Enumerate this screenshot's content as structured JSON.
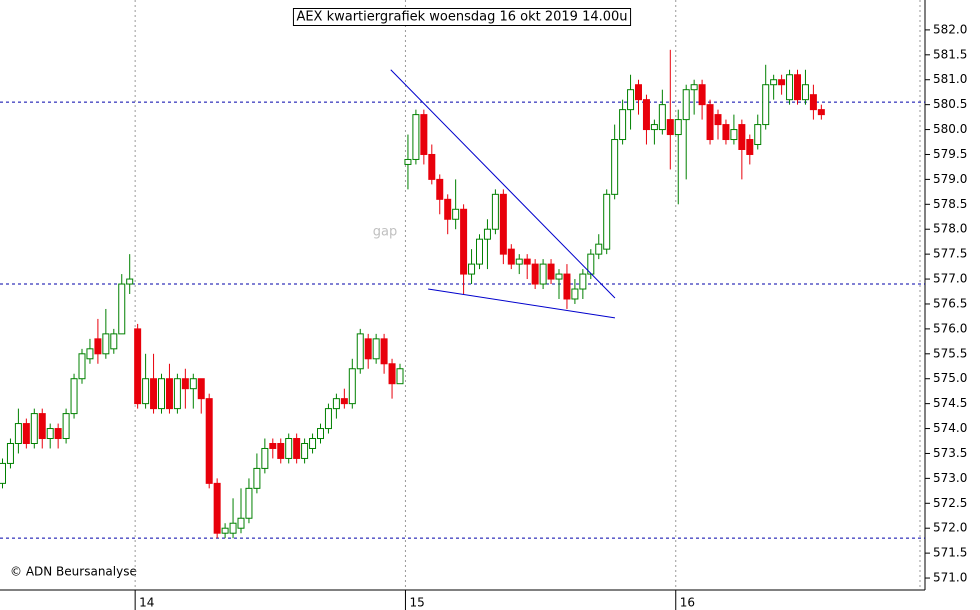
{
  "chart_data": {
    "type": "candlestick",
    "title": "AEX kwartiergrafiek woensdag 16 okt 2019 14.00u",
    "annotation": "gap",
    "copyright": "© ADN Beursanalyse",
    "up_color": "#008000",
    "down_color": "#e8000b",
    "line_color": "#0000cc",
    "ylim": [
      570.76,
      582.6
    ],
    "yticks": [
      {
        "value": 571,
        "label": "571.0"
      },
      {
        "value": 571.5,
        "label": "571.5"
      },
      {
        "value": 572,
        "label": "572.0"
      },
      {
        "value": 572.5,
        "label": "572.5"
      },
      {
        "value": 573,
        "label": "573.0"
      },
      {
        "value": 573.5,
        "label": "573.5"
      },
      {
        "value": 574,
        "label": "574.0"
      },
      {
        "value": 574.5,
        "label": "574.5"
      },
      {
        "value": 575,
        "label": "575.0"
      },
      {
        "value": 575.5,
        "label": "575.5"
      },
      {
        "value": 576,
        "label": "576.0"
      },
      {
        "value": 576.5,
        "label": "576.5"
      },
      {
        "value": 577,
        "label": "577.0"
      },
      {
        "value": 577.5,
        "label": "577.5"
      },
      {
        "value": 578,
        "label": "578.0"
      },
      {
        "value": 578.5,
        "label": "578.5"
      },
      {
        "value": 579,
        "label": "579.0"
      },
      {
        "value": 579.5,
        "label": "579.5"
      },
      {
        "value": 580,
        "label": "580.0"
      },
      {
        "value": 580.5,
        "label": "580.5"
      },
      {
        "value": 581,
        "label": "581.0"
      },
      {
        "value": 581.5,
        "label": "581.5"
      },
      {
        "value": 582,
        "label": "582.0"
      }
    ],
    "hlines": [
      580.55,
      576.9,
      571.8
    ],
    "trendlines": [
      {
        "x": [
          48.9,
          77.1
        ],
        "y": [
          581.2,
          576.62
        ]
      },
      {
        "x": [
          53.6,
          77.1
        ],
        "y": [
          576.8,
          576.22
        ]
      }
    ],
    "categories": [
      null,
      null,
      null,
      null,
      null,
      null,
      null,
      null,
      null,
      null,
      null,
      null,
      null,
      null,
      null,
      null,
      null,
      "14",
      null,
      null,
      null,
      null,
      null,
      null,
      null,
      null,
      null,
      null,
      null,
      null,
      null,
      null,
      null,
      null,
      null,
      null,
      null,
      null,
      null,
      null,
      null,
      null,
      null,
      null,
      null,
      null,
      null,
      null,
      null,
      null,
      null,
      "15",
      null,
      null,
      null,
      null,
      null,
      null,
      null,
      null,
      null,
      null,
      null,
      null,
      null,
      null,
      null,
      null,
      null,
      null,
      null,
      null,
      null,
      null,
      null,
      null,
      null,
      null,
      null,
      null,
      null,
      null,
      null,
      null,
      null,
      "16",
      null,
      null,
      null,
      null,
      null,
      null,
      null,
      null,
      null,
      null,
      null,
      null,
      null,
      null,
      null,
      null,
      null,
      null
    ],
    "ohlc": [
      [
        572.9,
        573.4,
        572.8,
        573.3
      ],
      [
        573.3,
        573.8,
        573.2,
        573.7
      ],
      [
        573.7,
        574.4,
        573.5,
        574.1
      ],
      [
        574.1,
        574.2,
        573.6,
        573.7
      ],
      [
        573.7,
        574.4,
        573.6,
        574.3
      ],
      [
        574.3,
        574.4,
        573.6,
        573.8
      ],
      [
        573.8,
        574.1,
        573.6,
        574.0
      ],
      [
        574.0,
        574.1,
        573.6,
        573.8
      ],
      [
        573.8,
        574.4,
        573.7,
        574.3
      ],
      [
        574.3,
        575.1,
        574.2,
        575.0
      ],
      [
        575.0,
        575.6,
        574.9,
        575.5
      ],
      [
        575.4,
        575.8,
        575.3,
        575.6
      ],
      [
        575.8,
        576.2,
        575.3,
        575.5
      ],
      [
        575.5,
        576.4,
        575.4,
        575.9
      ],
      [
        575.6,
        576.0,
        575.5,
        575.9
      ],
      [
        575.9,
        577.1,
        575.9,
        576.9
      ],
      [
        576.9,
        577.5,
        576.7,
        577.0
      ],
      [
        576.0,
        576.1,
        574.4,
        574.5
      ],
      [
        574.5,
        575.5,
        574.4,
        575.0
      ],
      [
        575.0,
        575.5,
        574.3,
        574.4
      ],
      [
        574.4,
        575.1,
        574.3,
        575.0
      ],
      [
        575.0,
        575.3,
        574.3,
        574.4
      ],
      [
        574.4,
        575.1,
        574.3,
        575.0
      ],
      [
        575.0,
        575.2,
        574.4,
        574.8
      ],
      [
        574.8,
        575.1,
        574.4,
        575.0
      ],
      [
        575.0,
        575.0,
        574.3,
        574.6
      ],
      [
        574.6,
        574.7,
        572.8,
        572.9
      ],
      [
        572.9,
        573.0,
        571.8,
        571.9
      ],
      [
        571.9,
        572.1,
        571.8,
        572.0
      ],
      [
        571.9,
        572.6,
        571.8,
        572.1
      ],
      [
        572.0,
        572.8,
        571.9,
        572.2
      ],
      [
        572.2,
        573.0,
        572.1,
        572.8
      ],
      [
        572.8,
        573.5,
        572.7,
        573.2
      ],
      [
        573.2,
        573.8,
        573.1,
        573.6
      ],
      [
        573.7,
        573.8,
        573.4,
        573.6
      ],
      [
        573.7,
        573.8,
        573.3,
        573.4
      ],
      [
        573.4,
        573.9,
        573.3,
        573.8
      ],
      [
        573.8,
        573.9,
        573.3,
        573.4
      ],
      [
        573.4,
        573.8,
        573.3,
        573.7
      ],
      [
        573.6,
        573.9,
        573.5,
        573.8
      ],
      [
        573.8,
        574.1,
        573.7,
        574.0
      ],
      [
        574.0,
        574.5,
        573.9,
        574.4
      ],
      [
        574.4,
        574.7,
        574.2,
        574.6
      ],
      [
        574.6,
        574.8,
        574.4,
        574.5
      ],
      [
        574.5,
        575.4,
        574.4,
        575.2
      ],
      [
        575.2,
        576.0,
        575.1,
        575.9
      ],
      [
        575.8,
        575.9,
        575.2,
        575.4
      ],
      [
        575.4,
        575.9,
        575.3,
        575.8
      ],
      [
        575.8,
        575.9,
        575.1,
        575.3
      ],
      [
        575.3,
        575.4,
        574.6,
        574.9
      ],
      [
        574.9,
        575.3,
        574.9,
        575.2
      ],
      [
        579.3,
        579.9,
        578.8,
        579.4
      ],
      [
        579.4,
        580.4,
        579.3,
        580.3
      ],
      [
        580.3,
        580.4,
        579.3,
        579.5
      ],
      [
        579.5,
        579.7,
        578.9,
        579.0
      ],
      [
        579.0,
        579.1,
        578.3,
        578.6
      ],
      [
        578.6,
        578.7,
        577.9,
        578.2
      ],
      [
        578.2,
        579.0,
        578.0,
        578.4
      ],
      [
        578.4,
        578.5,
        576.7,
        577.1
      ],
      [
        577.1,
        577.6,
        576.9,
        577.3
      ],
      [
        577.3,
        577.9,
        577.2,
        577.8
      ],
      [
        577.8,
        578.2,
        577.2,
        578.0
      ],
      [
        578.0,
        578.8,
        577.9,
        578.7
      ],
      [
        578.7,
        578.8,
        577.3,
        577.5
      ],
      [
        577.6,
        577.7,
        577.2,
        577.3
      ],
      [
        577.3,
        577.5,
        577.1,
        577.4
      ],
      [
        577.4,
        577.5,
        577.0,
        577.3
      ],
      [
        577.3,
        577.4,
        576.8,
        576.9
      ],
      [
        576.9,
        577.4,
        576.8,
        577.3
      ],
      [
        577.3,
        577.4,
        576.9,
        577.0
      ],
      [
        577.0,
        577.2,
        576.6,
        577.1
      ],
      [
        577.1,
        577.3,
        576.4,
        576.6
      ],
      [
        576.6,
        577.0,
        576.5,
        576.8
      ],
      [
        576.8,
        577.2,
        576.6,
        577.1
      ],
      [
        577.1,
        577.6,
        577.0,
        577.5
      ],
      [
        577.5,
        577.9,
        577.4,
        577.7
      ],
      [
        577.6,
        578.8,
        577.5,
        578.7
      ],
      [
        578.7,
        580.1,
        578.6,
        579.8
      ],
      [
        579.8,
        580.6,
        579.7,
        580.4
      ],
      [
        580.4,
        581.1,
        580.0,
        580.8
      ],
      [
        580.9,
        581.0,
        580.3,
        580.6
      ],
      [
        580.6,
        580.7,
        579.7,
        580.0
      ],
      [
        580.0,
        580.2,
        579.7,
        580.1
      ],
      [
        580.0,
        580.8,
        579.9,
        580.5
      ],
      [
        580.2,
        581.6,
        579.2,
        579.9
      ],
      [
        579.9,
        580.4,
        578.5,
        580.2
      ],
      [
        580.2,
        580.9,
        579.0,
        580.8
      ],
      [
        580.8,
        581.0,
        580.3,
        580.9
      ],
      [
        580.9,
        581.0,
        580.2,
        580.5
      ],
      [
        580.5,
        580.6,
        579.7,
        579.8
      ],
      [
        580.3,
        580.4,
        579.8,
        580.1
      ],
      [
        580.1,
        580.2,
        579.7,
        579.8
      ],
      [
        579.8,
        580.3,
        579.7,
        580.0
      ],
      [
        580.1,
        580.2,
        579.0,
        579.6
      ],
      [
        579.8,
        579.9,
        579.3,
        579.5
      ],
      [
        579.7,
        580.3,
        579.6,
        580.1
      ],
      [
        580.1,
        581.3,
        580.0,
        580.9
      ],
      [
        580.9,
        581.1,
        580.6,
        581.0
      ],
      [
        581.0,
        581.1,
        580.7,
        580.9
      ],
      [
        580.6,
        581.2,
        580.5,
        581.1
      ],
      [
        581.1,
        581.2,
        580.5,
        580.6
      ],
      [
        580.6,
        581.2,
        580.5,
        580.9
      ],
      [
        580.7,
        580.9,
        580.2,
        580.4
      ],
      [
        580.4,
        580.5,
        580.2,
        580.3
      ]
    ]
  }
}
